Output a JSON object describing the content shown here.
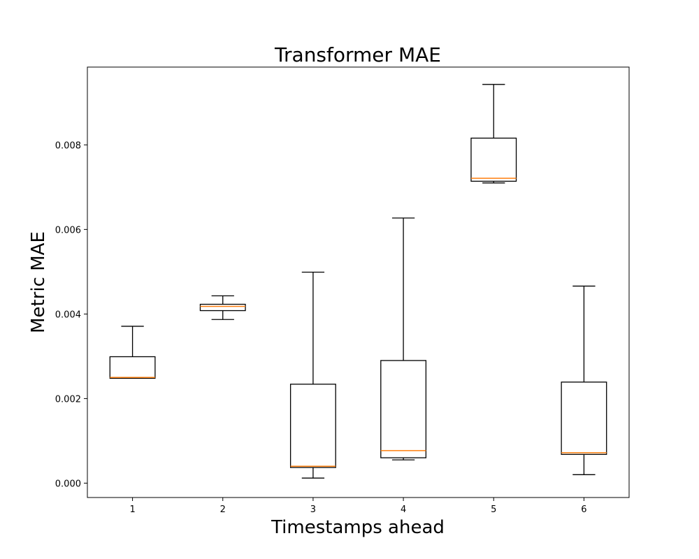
{
  "chart_data": {
    "type": "box",
    "title": "Transformer MAE",
    "xlabel": "Timestamps ahead",
    "ylabel": "Metric MAE",
    "categories": [
      "1",
      "2",
      "3",
      "4",
      "5",
      "6"
    ],
    "y_ticks": [
      "0.000",
      "0.002",
      "0.004",
      "0.006",
      "0.008"
    ],
    "y_tick_values": [
      0.0,
      0.002,
      0.004,
      0.006,
      0.008
    ],
    "ylim": [
      -0.00034,
      0.00984
    ],
    "grid": false,
    "boxes": [
      {
        "category": "1",
        "whisker_low": 0.00248,
        "q1": 0.00248,
        "median": 0.0025,
        "q3": 0.00299,
        "whisker_high": 0.00371
      },
      {
        "category": "2",
        "whisker_low": 0.00387,
        "q1": 0.00408,
        "median": 0.00418,
        "q3": 0.00423,
        "whisker_high": 0.00443
      },
      {
        "category": "3",
        "whisker_low": 0.00012,
        "q1": 0.00037,
        "median": 0.0004,
        "q3": 0.00234,
        "whisker_high": 0.00499
      },
      {
        "category": "4",
        "whisker_low": 0.00055,
        "q1": 0.0006,
        "median": 0.00077,
        "q3": 0.0029,
        "whisker_high": 0.00627
      },
      {
        "category": "5",
        "whisker_low": 0.0071,
        "q1": 0.00714,
        "median": 0.00721,
        "q3": 0.00816,
        "whisker_high": 0.00943
      },
      {
        "category": "6",
        "whisker_low": 0.0002,
        "q1": 0.00068,
        "median": 0.00072,
        "q3": 0.00239,
        "whisker_high": 0.00466
      }
    ],
    "colors": {
      "box": "#000000",
      "median": "#ff7f0e"
    }
  }
}
